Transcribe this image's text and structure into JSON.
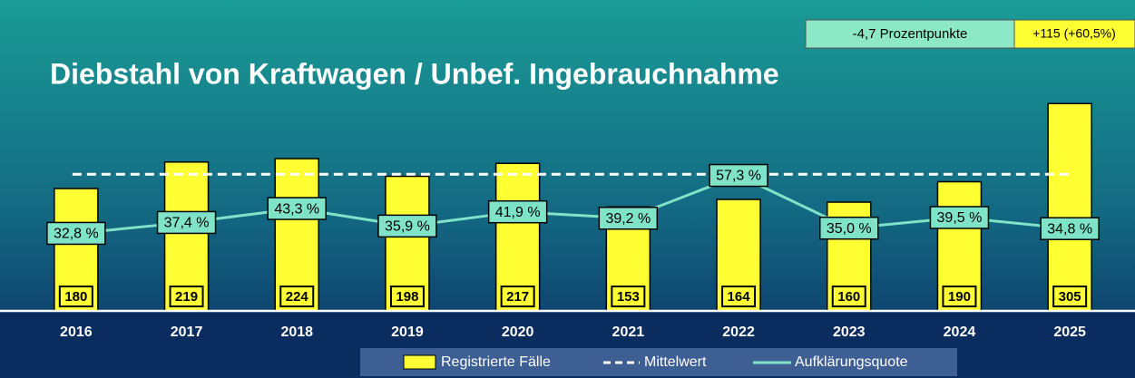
{
  "chart_data": {
    "type": "bar-line",
    "title": "Diebstahl von Kraftwagen / Unbef. Ingebrauchnahme",
    "annotations": [
      "-4,7 Prozentpunkte",
      "+115 (+60,5%)"
    ],
    "categories": [
      "2016",
      "2017",
      "2018",
      "2019",
      "2020",
      "2021",
      "2022",
      "2023",
      "2024",
      "2025"
    ],
    "series": [
      {
        "name": "Registrierte Fälle",
        "color": "#ffff33",
        "values": [
          180,
          219,
          224,
          198,
          217,
          153,
          164,
          160,
          190,
          305
        ]
      },
      {
        "name": "Aufklärungsquote",
        "color": "#7fe3c8",
        "axis": "y2",
        "values": [
          32.8,
          37.4,
          43.3,
          35.9,
          41.9,
          39.2,
          57.3,
          35.0,
          39.5,
          34.8
        ],
        "value_labels": [
          "32,8 %",
          "37,4 %",
          "43,3 %",
          "35,9 %",
          "41,9 %",
          "39,2 %",
          "57,3 %",
          "35,0 %",
          "39,5 %",
          "34,8 %"
        ]
      }
    ],
    "mean": {
      "name": "Mittelwert",
      "color": "#ffffff",
      "value": 201
    },
    "ylim": [
      0,
      400
    ],
    "y2lim": [
      0,
      115
    ]
  }
}
